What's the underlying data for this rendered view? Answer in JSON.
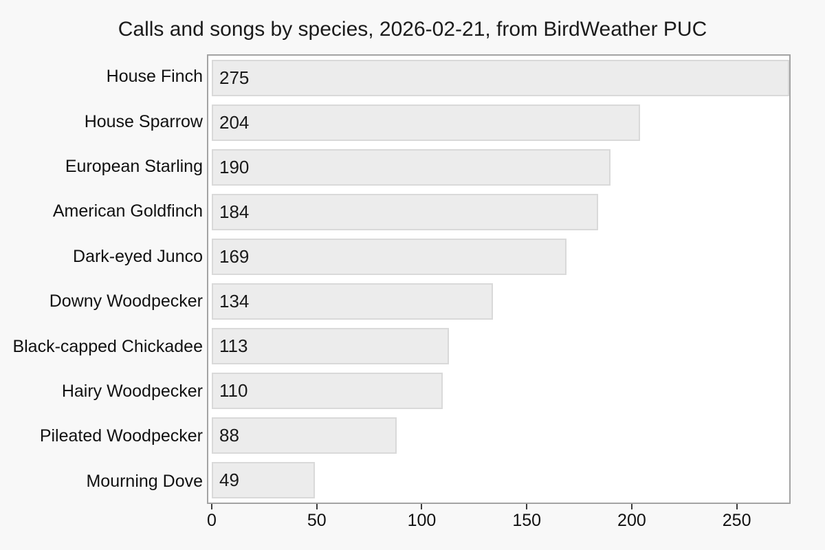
{
  "chart_data": {
    "type": "bar",
    "orientation": "horizontal",
    "title": "Calls and songs by species, 2026-02-21, from BirdWeather PUC",
    "categories": [
      "House Finch",
      "House Sparrow",
      "European Starling",
      "American Goldfinch",
      "Dark-eyed Junco",
      "Downy Woodpecker",
      "Black-capped Chickadee",
      "Hairy Woodpecker",
      "Pileated Woodpecker",
      "Mourning Dove"
    ],
    "values": [
      275,
      204,
      190,
      184,
      169,
      134,
      113,
      110,
      88,
      49
    ],
    "value_label_position": "inside-left",
    "xlabel": "",
    "ylabel": "",
    "xlim": [
      0,
      275
    ],
    "xticks": [
      0,
      50,
      100,
      150,
      200,
      250
    ],
    "grid": false,
    "legend": "none"
  },
  "colors": {
    "page_background": "#f8f8f8",
    "plot_background": "#ffffff",
    "frame_border": "#a3a3a3",
    "bar_fill": "#ececec",
    "bar_border": "#d9d9d9",
    "text": "#1a1a1a",
    "tick_mark": "#3a3a3a"
  }
}
